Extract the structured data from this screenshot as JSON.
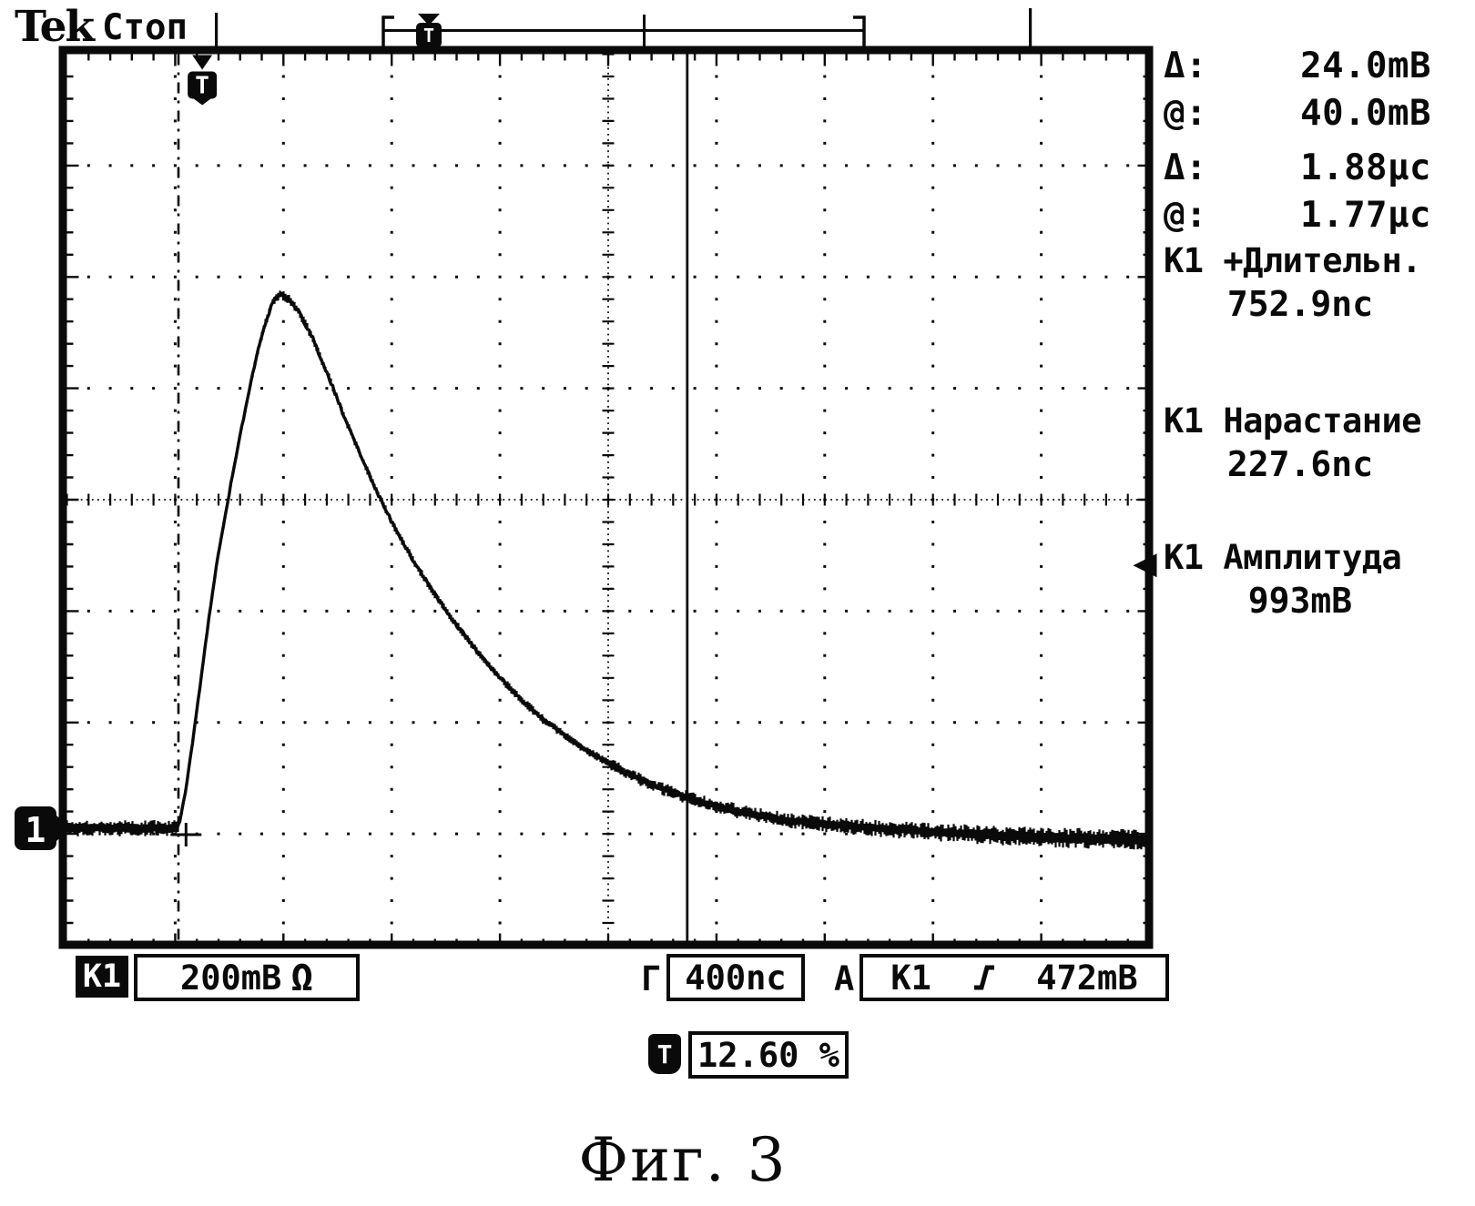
{
  "header": {
    "logo": "Tek",
    "status": "Стоп"
  },
  "screen_markers": {
    "trigger_time_flag": "T",
    "record_window_flag": "T",
    "channel_tag": "1"
  },
  "readouts": {
    "voltage_cursors": [
      {
        "label": "Δ:",
        "value": "24.0mB"
      },
      {
        "label": "@:",
        "value": "40.0mB"
      }
    ],
    "time_cursors": [
      {
        "label": "Δ:",
        "value": "1.88µc"
      },
      {
        "label": "@:",
        "value": "1.77µc"
      }
    ],
    "measurements": [
      {
        "name": "К1 +Длительн.",
        "value": "752.9nc"
      },
      {
        "name": "К1 Нарастание",
        "value": "227.6nc"
      },
      {
        "name": "К1 Амплитуда",
        "value": "993mB"
      }
    ]
  },
  "bottom_bar": {
    "channel_tag": "К1",
    "vertical_scale": "200mB",
    "coupling": "Ω",
    "horizontal_label": "Г",
    "timebase": "400nc",
    "trigger_section_label": "A",
    "trigger_source": "К1",
    "trigger_level": "472mB",
    "slope_icon": "rising-edge"
  },
  "trigger_position_readout": {
    "icon_label": "T",
    "value": "12.60 %"
  },
  "caption": "Фиг. 3",
  "colors": {
    "ink": "#0a0a0a",
    "paper": "#ffffff"
  },
  "chart_data": {
    "type": "line",
    "title": "Oscilloscope trace, channel К1 single pulse",
    "xlabel": "time (400nc per division)",
    "ylabel": "voltage (200mB per division)",
    "x_divisions": 10,
    "y_divisions": 8,
    "time_per_div": "400nc",
    "volts_per_div": "200mB",
    "ground_reference_div_from_top": 6.95,
    "trigger_level_mV": 472,
    "trigger_position_div": 1.25,
    "cursor1_div": 1.03,
    "cursor2_div": 5.73,
    "grid": "dotted, center crosshair with minor ticks",
    "legend_position": "none",
    "noise_mV_pp": 25,
    "series": [
      {
        "name": "К1",
        "x_div": [
          0,
          0.3,
          0.6,
          0.85,
          1.0,
          1.04,
          1.09,
          1.15,
          1.22,
          1.3,
          1.38,
          1.46,
          1.54,
          1.63,
          1.72,
          1.82,
          1.9,
          1.97,
          2.05,
          2.15,
          2.27,
          2.4,
          2.55,
          2.7,
          2.85,
          3.0,
          3.2,
          3.4,
          3.6,
          3.8,
          4.0,
          4.2,
          4.4,
          4.6,
          4.8,
          5.0,
          5.25,
          5.5,
          5.75,
          6.0,
          6.3,
          6.6,
          6.9,
          7.2,
          7.5,
          7.8,
          8.1,
          8.4,
          8.7,
          9.0,
          9.3,
          9.6,
          10.0
        ],
        "mV": [
          0,
          0,
          0,
          0,
          0,
          8,
          60,
          140,
          240,
          360,
          470,
          560,
          645,
          735,
          820,
          900,
          945,
          960,
          950,
          925,
          880,
          820,
          745,
          675,
          610,
          550,
          480,
          420,
          365,
          315,
          270,
          230,
          196,
          166,
          140,
          117,
          92,
          71,
          54,
          40,
          26,
          16,
          9,
          4,
          0,
          -4,
          -8,
          -11,
          -14,
          -16,
          -18,
          -19,
          -20
        ]
      }
    ],
    "measurements_shown": {
      "delta_V": "24.0mB",
      "at_V": "40.0mB",
      "delta_t": "1.88µc",
      "at_t": "1.77µc",
      "positive_width": "752.9nc",
      "rise_time": "227.6nc",
      "amplitude": "993mB",
      "trigger_position_percent": "12.60 %"
    }
  }
}
